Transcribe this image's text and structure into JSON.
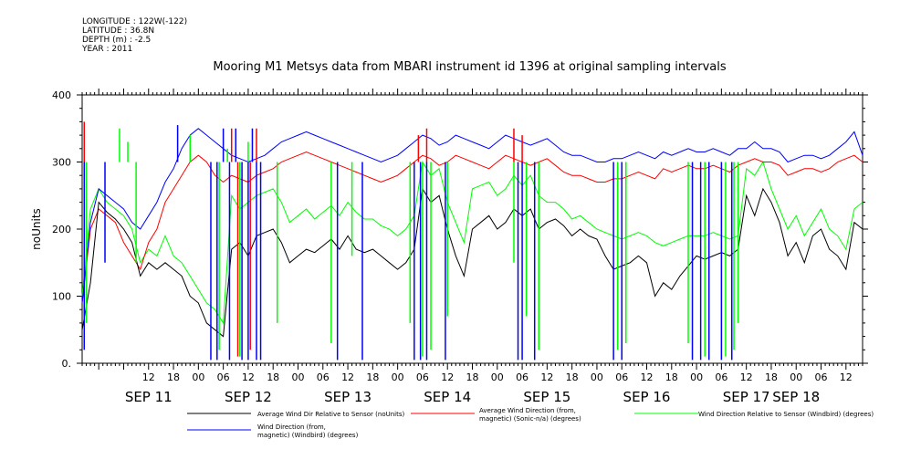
{
  "meta": {
    "longitude": "LONGITUDE : 122W(-122)",
    "latitude": "LATITUDE : 36.8N",
    "depth": "DEPTH (m) : -2.5",
    "year": "YEAR : 2011"
  },
  "chart_data": {
    "type": "line",
    "title": "Mooring M1 Metsys data from MBARI instrument id 1396 at original sampling intervals",
    "ylabel": "noUnits",
    "ylim": [
      0,
      400
    ],
    "yticks": [
      "0.",
      "100",
      "200",
      "300",
      "400"
    ],
    "yticks_values": [
      0,
      100,
      200,
      300,
      400
    ],
    "xrange_hours": [
      -4,
      184
    ],
    "hour_ticks": [
      "12",
      "18",
      "00",
      "06",
      "12",
      "18",
      "00",
      "06",
      "12",
      "18",
      "00",
      "06",
      "12",
      "18",
      "00",
      "06",
      "12",
      "18",
      "00",
      "06",
      "12",
      "18",
      "00",
      "06",
      "12",
      "18",
      "00",
      "06",
      "12",
      "18",
      "00"
    ],
    "hour_ticks_positions_h": [
      12,
      18,
      24,
      30,
      36,
      42,
      48,
      54,
      60,
      66,
      72,
      78,
      84,
      90,
      96,
      102,
      108,
      114,
      120,
      126,
      132,
      138,
      144,
      150,
      156,
      162,
      168,
      174,
      180,
      186,
      192
    ],
    "day_labels": [
      "SEP 11",
      "SEP 12",
      "SEP 13",
      "SEP 14",
      "SEP 15",
      "SEP 16",
      "SEP 17",
      "SEP 18"
    ],
    "day_labels_positions_h": [
      12,
      36,
      60,
      84,
      108,
      132,
      156,
      168
    ],
    "series": [
      {
        "name": "Average Wind Dir Relative to Sensor (noUnits)",
        "color": "#000000",
        "x": [
          -4,
          -2,
          0,
          2,
          4,
          6,
          8,
          10,
          12,
          14,
          16,
          18,
          20,
          22,
          24,
          26,
          28,
          30,
          32,
          34,
          36,
          38,
          40,
          42,
          44,
          46,
          48,
          50,
          52,
          54,
          56,
          58,
          60,
          62,
          64,
          66,
          68,
          70,
          72,
          74,
          76,
          78,
          80,
          82,
          84,
          86,
          88,
          90,
          92,
          94,
          96,
          98,
          100,
          102,
          104,
          106,
          108,
          110,
          112,
          114,
          116,
          118,
          120,
          122,
          124,
          126,
          128,
          130,
          132,
          134,
          136,
          138,
          140,
          142,
          144,
          146,
          148,
          150,
          152,
          154,
          156,
          158,
          160,
          162,
          164,
          166,
          168,
          170,
          172,
          174,
          176,
          178,
          180,
          182,
          184
        ],
        "y": [
          50,
          120,
          240,
          225,
          215,
          200,
          180,
          130,
          150,
          140,
          150,
          140,
          130,
          100,
          90,
          60,
          50,
          40,
          170,
          180,
          160,
          190,
          195,
          200,
          180,
          150,
          160,
          170,
          165,
          175,
          185,
          170,
          190,
          170,
          165,
          170,
          160,
          150,
          140,
          150,
          170,
          260,
          240,
          250,
          200,
          160,
          130,
          200,
          210,
          220,
          200,
          210,
          230,
          220,
          230,
          200,
          210,
          215,
          205,
          190,
          200,
          190,
          185,
          160,
          140,
          145,
          150,
          160,
          150,
          100,
          120,
          110,
          130,
          145,
          160,
          155,
          160,
          165,
          160,
          170,
          250,
          220,
          260,
          240,
          210,
          160,
          180,
          150,
          190,
          200,
          170,
          160,
          140,
          210,
          200
        ]
      },
      {
        "name": "Average Wind Direction (from, magnetic) (Sonic-n/a) (degrees)",
        "color": "#ff0000",
        "x": [
          -4,
          -2,
          0,
          2,
          4,
          6,
          8,
          10,
          12,
          14,
          16,
          18,
          20,
          22,
          24,
          26,
          28,
          30,
          32,
          34,
          36,
          38,
          40,
          42,
          44,
          46,
          48,
          50,
          52,
          54,
          56,
          58,
          60,
          62,
          64,
          66,
          68,
          70,
          72,
          74,
          76,
          78,
          80,
          82,
          84,
          86,
          88,
          90,
          92,
          94,
          96,
          98,
          100,
          102,
          104,
          106,
          108,
          110,
          112,
          114,
          116,
          118,
          120,
          122,
          124,
          126,
          128,
          130,
          132,
          134,
          136,
          138,
          140,
          142,
          144,
          146,
          148,
          150,
          152,
          154,
          156,
          158,
          160,
          162,
          164,
          166,
          168,
          170,
          172,
          174,
          176,
          178,
          180,
          182,
          184
        ],
        "y": [
          90,
          200,
          230,
          220,
          210,
          180,
          160,
          140,
          180,
          200,
          240,
          260,
          280,
          300,
          310,
          300,
          280,
          270,
          280,
          275,
          270,
          280,
          285,
          290,
          300,
          305,
          310,
          315,
          310,
          305,
          300,
          295,
          290,
          285,
          280,
          275,
          270,
          275,
          280,
          290,
          300,
          310,
          305,
          295,
          300,
          310,
          305,
          300,
          295,
          290,
          300,
          310,
          305,
          300,
          295,
          300,
          305,
          295,
          285,
          280,
          280,
          275,
          270,
          270,
          275,
          275,
          280,
          285,
          280,
          275,
          290,
          285,
          290,
          295,
          290,
          290,
          295,
          290,
          285,
          295,
          300,
          305,
          300,
          300,
          295,
          280,
          285,
          290,
          290,
          285,
          290,
          300,
          305,
          310,
          300
        ]
      },
      {
        "name": "Wind Direction Relative to Sensor (Windbird) (degrees)",
        "color": "#00ff00",
        "x": [
          -4,
          -2,
          0,
          2,
          4,
          6,
          8,
          10,
          12,
          14,
          16,
          18,
          20,
          22,
          24,
          26,
          28,
          30,
          32,
          34,
          36,
          38,
          40,
          42,
          44,
          46,
          48,
          50,
          52,
          54,
          56,
          58,
          60,
          62,
          64,
          66,
          68,
          70,
          72,
          74,
          76,
          78,
          80,
          82,
          84,
          86,
          88,
          90,
          92,
          94,
          96,
          98,
          100,
          102,
          104,
          106,
          108,
          110,
          112,
          114,
          116,
          118,
          120,
          122,
          124,
          126,
          128,
          130,
          132,
          134,
          136,
          138,
          140,
          142,
          144,
          146,
          148,
          150,
          152,
          154,
          156,
          158,
          160,
          162,
          164,
          166,
          168,
          170,
          172,
          174,
          176,
          178,
          180,
          182,
          184
        ],
        "y": [
          100,
          230,
          260,
          240,
          230,
          220,
          200,
          150,
          170,
          160,
          190,
          160,
          150,
          130,
          110,
          90,
          80,
          60,
          250,
          230,
          240,
          250,
          255,
          260,
          240,
          210,
          220,
          230,
          215,
          225,
          235,
          220,
          240,
          225,
          215,
          215,
          205,
          200,
          190,
          200,
          220,
          300,
          280,
          290,
          240,
          210,
          180,
          260,
          265,
          270,
          250,
          260,
          280,
          265,
          280,
          250,
          240,
          240,
          230,
          215,
          220,
          210,
          200,
          195,
          190,
          185,
          190,
          195,
          190,
          180,
          175,
          180,
          185,
          190,
          190,
          190,
          195,
          190,
          185,
          190,
          290,
          280,
          300,
          260,
          230,
          200,
          220,
          190,
          210,
          230,
          200,
          190,
          170,
          230,
          240
        ]
      },
      {
        "name": "Wind Direction (from, magnetic) (Windbird) (degrees)",
        "color": "#0000ff",
        "x": [
          -4,
          -2,
          0,
          2,
          4,
          6,
          8,
          10,
          12,
          14,
          16,
          18,
          20,
          22,
          24,
          26,
          28,
          30,
          32,
          34,
          36,
          38,
          40,
          42,
          44,
          46,
          48,
          50,
          52,
          54,
          56,
          58,
          60,
          62,
          64,
          66,
          68,
          70,
          72,
          74,
          76,
          78,
          80,
          82,
          84,
          86,
          88,
          90,
          92,
          94,
          96,
          98,
          100,
          102,
          104,
          106,
          108,
          110,
          112,
          114,
          116,
          118,
          120,
          122,
          124,
          126,
          128,
          130,
          132,
          134,
          136,
          138,
          140,
          142,
          144,
          146,
          148,
          150,
          152,
          154,
          156,
          158,
          160,
          162,
          164,
          166,
          168,
          170,
          172,
          174,
          176,
          178,
          180,
          182,
          184
        ],
        "y": [
          90,
          210,
          260,
          250,
          240,
          230,
          210,
          200,
          220,
          240,
          270,
          290,
          320,
          340,
          350,
          340,
          330,
          320,
          310,
          305,
          300,
          305,
          310,
          320,
          330,
          335,
          340,
          345,
          340,
          335,
          330,
          325,
          320,
          315,
          310,
          305,
          300,
          305,
          310,
          320,
          330,
          340,
          335,
          325,
          330,
          340,
          335,
          330,
          325,
          320,
          330,
          340,
          335,
          330,
          325,
          330,
          335,
          325,
          315,
          310,
          310,
          305,
          300,
          300,
          305,
          305,
          310,
          315,
          310,
          305,
          315,
          310,
          315,
          320,
          315,
          315,
          320,
          315,
          310,
          320,
          320,
          330,
          320,
          320,
          315,
          300,
          305,
          310,
          310,
          305,
          310,
          320,
          330,
          345,
          310
        ]
      }
    ],
    "spikes": {
      "blue": [
        [
          -3.5,
          20
        ],
        [
          1.5,
          150
        ],
        [
          19,
          355
        ],
        [
          27,
          5
        ],
        [
          28.5,
          5
        ],
        [
          30,
          350
        ],
        [
          31.5,
          5
        ],
        [
          33,
          350
        ],
        [
          34.5,
          5
        ],
        [
          36,
          5
        ],
        [
          37,
          350
        ],
        [
          38,
          5
        ],
        [
          39,
          5
        ],
        [
          57.5,
          5
        ],
        [
          63.5,
          5
        ],
        [
          76,
          5
        ],
        [
          77.5,
          5
        ],
        [
          79,
          5
        ],
        [
          83.5,
          5
        ],
        [
          101,
          5
        ],
        [
          102,
          5
        ],
        [
          105,
          5
        ],
        [
          124,
          5
        ],
        [
          126,
          5
        ],
        [
          143,
          5
        ],
        [
          145,
          5
        ],
        [
          147,
          5
        ],
        [
          150,
          5
        ],
        [
          152.5,
          5
        ]
      ],
      "green": [
        [
          -3,
          60
        ],
        [
          5,
          350
        ],
        [
          7,
          330
        ],
        [
          9,
          150
        ],
        [
          22,
          340
        ],
        [
          29,
          20
        ],
        [
          31,
          320
        ],
        [
          34,
          10
        ],
        [
          36,
          330
        ],
        [
          43,
          60
        ],
        [
          56,
          30
        ],
        [
          61,
          160
        ],
        [
          62,
          300
        ],
        [
          75,
          60
        ],
        [
          78,
          10
        ],
        [
          80,
          20
        ],
        [
          84,
          70
        ],
        [
          100,
          150
        ],
        [
          103,
          70
        ],
        [
          106,
          20
        ],
        [
          125,
          20
        ],
        [
          127,
          30
        ],
        [
          142,
          30
        ],
        [
          146,
          10
        ],
        [
          151,
          10
        ],
        [
          153,
          20
        ],
        [
          154,
          60
        ]
      ],
      "red": [
        [
          -3.5,
          360
        ],
        [
          32,
          350
        ],
        [
          33.5,
          10
        ],
        [
          36.5,
          20
        ],
        [
          38,
          350
        ],
        [
          77,
          340
        ],
        [
          79,
          350
        ],
        [
          100,
          350
        ],
        [
          102,
          340
        ]
      ]
    }
  },
  "legend": [
    {
      "label": "Average Wind Dir Relative to Sensor (noUnits)",
      "color": "#000000"
    },
    {
      "label": "Average Wind Direction (from,",
      "label2": "magnetic) (Sonic-n/a) (degrees)",
      "color": "#ff0000"
    },
    {
      "label": "Wind Direction Relative to Sensor (Windbird) (degrees)",
      "color": "#00ff00"
    },
    {
      "label": "Wind Direction (from,",
      "label2": "magnetic) (Windbird) (degrees)",
      "color": "#0000ff"
    }
  ]
}
